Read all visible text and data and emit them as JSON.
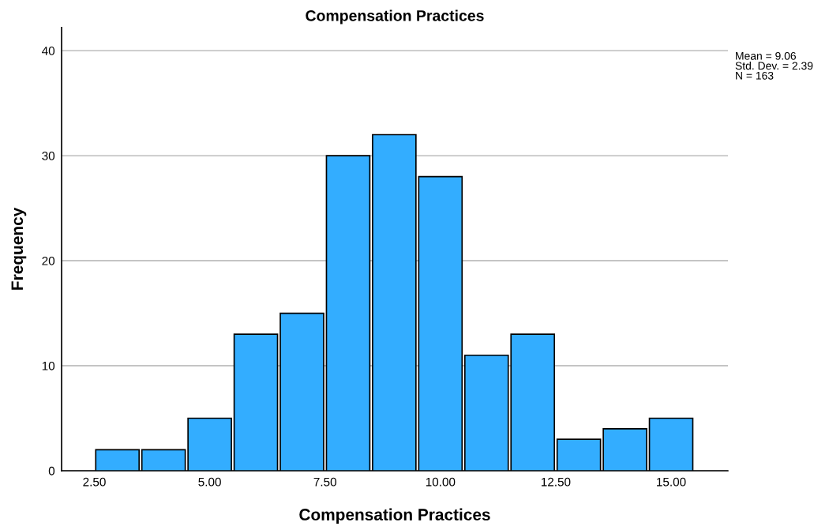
{
  "chart_data": {
    "type": "histogram",
    "title": "Compensation Practices",
    "xlabel": "Compensation Practices",
    "ylabel": "Frequency",
    "bins": [
      2.5,
      3.5,
      4.5,
      5.5,
      6.5,
      7.5,
      8.5,
      9.5,
      10.5,
      11.5,
      12.5,
      13.5,
      14.5,
      15.5
    ],
    "values": [
      2,
      2,
      5,
      13,
      15,
      30,
      32,
      28,
      11,
      13,
      3,
      4,
      5
    ],
    "color": "#33adff",
    "xlim": [
      1.79,
      16.23
    ],
    "xticks": [
      {
        "value": 2.5,
        "label": "2.50"
      },
      {
        "value": 5,
        "label": "5.00"
      },
      {
        "value": 7.5,
        "label": "7.50"
      },
      {
        "value": 10,
        "label": "10.00"
      },
      {
        "value": 12.5,
        "label": "12.50"
      },
      {
        "value": 15,
        "label": "15.00"
      }
    ],
    "ylim": [
      0,
      42.2
    ],
    "yticks": [
      0,
      10,
      20,
      30,
      40
    ],
    "grid": "y",
    "legend": false,
    "annotations": [
      "Mean = 9.06",
      "Std. Dev. = 2.39",
      "N = 163"
    ]
  }
}
